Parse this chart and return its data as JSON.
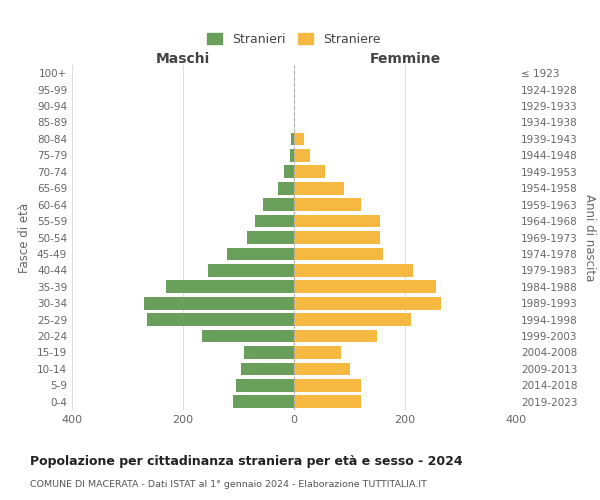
{
  "age_groups": [
    "0-4",
    "5-9",
    "10-14",
    "15-19",
    "20-24",
    "25-29",
    "30-34",
    "35-39",
    "40-44",
    "45-49",
    "50-54",
    "55-59",
    "60-64",
    "65-69",
    "70-74",
    "75-79",
    "80-84",
    "85-89",
    "90-94",
    "95-99",
    "100+"
  ],
  "birth_years": [
    "2019-2023",
    "2014-2018",
    "2009-2013",
    "2004-2008",
    "1999-2003",
    "1994-1998",
    "1989-1993",
    "1984-1988",
    "1979-1983",
    "1974-1978",
    "1969-1973",
    "1964-1968",
    "1959-1963",
    "1954-1958",
    "1949-1953",
    "1944-1948",
    "1939-1943",
    "1934-1938",
    "1929-1933",
    "1924-1928",
    "≤ 1923"
  ],
  "males": [
    110,
    105,
    95,
    90,
    165,
    265,
    270,
    230,
    155,
    120,
    85,
    70,
    55,
    28,
    18,
    8,
    5,
    0,
    0,
    0,
    0
  ],
  "females": [
    120,
    120,
    100,
    85,
    150,
    210,
    265,
    255,
    215,
    160,
    155,
    155,
    120,
    90,
    55,
    28,
    18,
    0,
    0,
    0,
    0
  ],
  "male_color": "#6a9e5b",
  "female_color": "#f5b942",
  "title": "Popolazione per cittadinanza straniera per età e sesso - 2024",
  "subtitle": "COMUNE DI MACERATA - Dati ISTAT al 1° gennaio 2024 - Elaborazione TUTTITALIA.IT",
  "male_label": "Stranieri",
  "female_label": "Straniere",
  "xlabel_left": "Maschi",
  "xlabel_right": "Femmine",
  "ylabel_left": "Fasce di età",
  "ylabel_right": "Anni di nascita",
  "xlim": 400,
  "background_color": "#ffffff",
  "grid_color": "#dddddd"
}
